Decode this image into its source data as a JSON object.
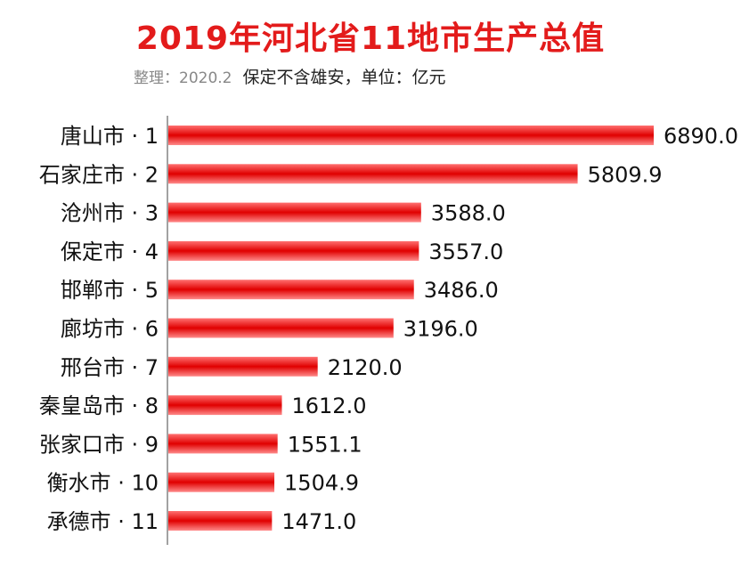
{
  "header": {
    "title": "2019年河北省11地市生产总值",
    "note": "整理：2020.2",
    "subtitle": "保定不含雄安，单位：亿元"
  },
  "colors": {
    "title": "#e31b1b",
    "bar_top": "#ff7070",
    "bar_mid": "#e00000",
    "bar_bottom": "#ff8a8a",
    "axis": "#444444"
  },
  "chart_data": {
    "type": "bar",
    "orientation": "horizontal",
    "title": "2019年河北省11地市生产总值",
    "subtitle": "保定不含雄安，单位：亿元",
    "categories": [
      "唐山市 · 1",
      "石家庄市 · 2",
      "沧州市 · 3",
      "保定市 · 4",
      "邯郸市 · 5",
      "廊坊市 · 6",
      "邢台市 · 7",
      "秦皇岛市 · 8",
      "张家口市 · 9",
      "衡水市 · 10",
      "承德市 · 11"
    ],
    "values": [
      6890.0,
      5809.9,
      3588.0,
      3557.0,
      3486.0,
      3196.0,
      2120.0,
      1612.0,
      1551.1,
      1504.9,
      1471.0
    ],
    "value_labels": [
      "6890.0",
      "5809.9",
      "3588.0",
      "3557.0",
      "3486.0",
      "3196.0",
      "2120.0",
      "1612.0",
      "1551.1",
      "1504.9",
      "1471.0"
    ],
    "xlim": [
      0,
      6890
    ],
    "grid": false,
    "legend": "none"
  }
}
